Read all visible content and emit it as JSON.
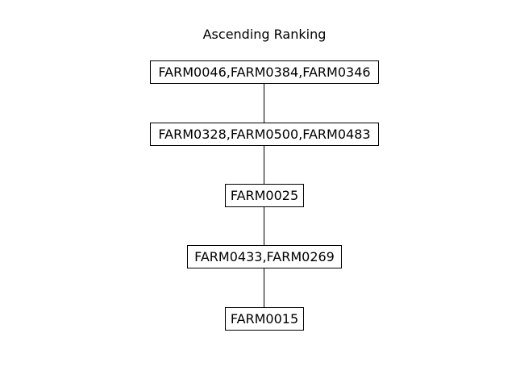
{
  "diagram": {
    "title": "Ascending Ranking",
    "levels": [
      {
        "label": "FARM0046,FARM0384,FARM0346"
      },
      {
        "label": "FARM0328,FARM0500,FARM0483"
      },
      {
        "label": "FARM0025"
      },
      {
        "label": "FARM0433,FARM0269"
      },
      {
        "label": "FARM0015"
      }
    ],
    "colors": {
      "line": "#000000",
      "box_border": "#000000",
      "box_fill": "#ffffff",
      "text": "#000000"
    }
  }
}
